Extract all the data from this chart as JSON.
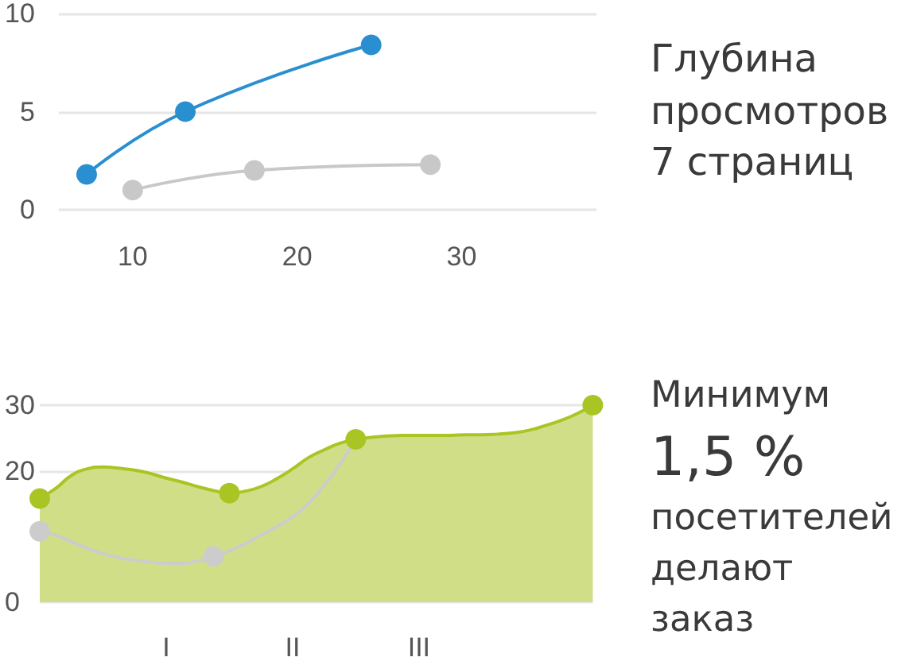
{
  "chart_data": [
    {
      "type": "line",
      "xlim": [
        5.5,
        38.2
      ],
      "xticks": [
        10,
        20,
        30
      ],
      "ylim": [
        0,
        10
      ],
      "yticks": [
        0,
        5,
        10
      ],
      "grid": "y",
      "marker": "circle",
      "series": [
        {
          "color": "#2a8fd0",
          "x": [
            7.2,
            13.2,
            24.5
          ],
          "values": [
            1.8,
            5.0,
            8.4
          ]
        },
        {
          "color": "#c8c8c8",
          "x": [
            10.0,
            17.4,
            28.1
          ],
          "values": [
            1.0,
            2.0,
            2.3
          ]
        }
      ],
      "annotations": [
        "Глубина просмотров 7 страниц"
      ]
    },
    {
      "type": "area",
      "categories": [
        null,
        null,
        null,
        null,
        null,
        null,
        null,
        null,
        "I",
        null,
        null,
        null,
        null,
        null,
        null,
        null,
        "II",
        null,
        null,
        null,
        null,
        null,
        null,
        null,
        "III",
        null,
        null,
        null,
        null,
        null,
        null,
        null,
        null,
        null,
        null,
        null
      ],
      "ylim": [
        0,
        30
      ],
      "yticks": [
        0,
        20,
        30
      ],
      "grid": "y",
      "series": [
        {
          "color": "#a9c524",
          "values": [
            15.8,
            17.3,
            19.3,
            20.3,
            20.6,
            20.4,
            20.1,
            19.6,
            18.9,
            18.3,
            17.6,
            17.0,
            16.6,
            16.9,
            17.6,
            18.8,
            20.3,
            22.0,
            23.2,
            24.2,
            24.8,
            25.1,
            25.3,
            25.4,
            25.4,
            25.4,
            25.4,
            25.5,
            25.5,
            25.6,
            25.8,
            26.2,
            26.9,
            27.7,
            28.7,
            30
          ]
        },
        {
          "type": "line",
          "color": "#cccccc",
          "values": [
            10.8,
            10.2,
            9.2,
            8.2,
            7.4,
            6.8,
            6.4,
            6.1,
            5.9,
            5.9,
            6.3,
            7.0,
            7.8,
            8.9,
            10.2,
            11.5,
            13.0,
            15.0,
            17.8,
            21.0,
            24.8,
            null,
            null,
            null,
            null,
            null,
            null,
            null,
            null,
            null,
            null,
            null,
            null,
            null,
            null,
            null
          ]
        },
        {
          "type": "scatter",
          "color": "#cccccc",
          "values": [
            10.8,
            null,
            null,
            null,
            null,
            null,
            null,
            null,
            null,
            null,
            null,
            7.0,
            null,
            null,
            null,
            null,
            null,
            null,
            null,
            null,
            null,
            null,
            null,
            null,
            null,
            null,
            null,
            null,
            null,
            null,
            null,
            null,
            null,
            null,
            null,
            null
          ]
        },
        {
          "type": "scatter",
          "color": "#a9c524",
          "values": [
            15.8,
            null,
            null,
            null,
            null,
            null,
            null,
            null,
            null,
            null,
            null,
            null,
            16.6,
            null,
            null,
            null,
            null,
            null,
            null,
            null,
            24.8,
            null,
            null,
            null,
            null,
            null,
            null,
            null,
            null,
            null,
            null,
            null,
            null,
            null,
            null,
            30
          ]
        }
      ],
      "annotations": [
        "Минимум",
        "1,5 %",
        "посетителей делают заказ"
      ]
    }
  ]
}
